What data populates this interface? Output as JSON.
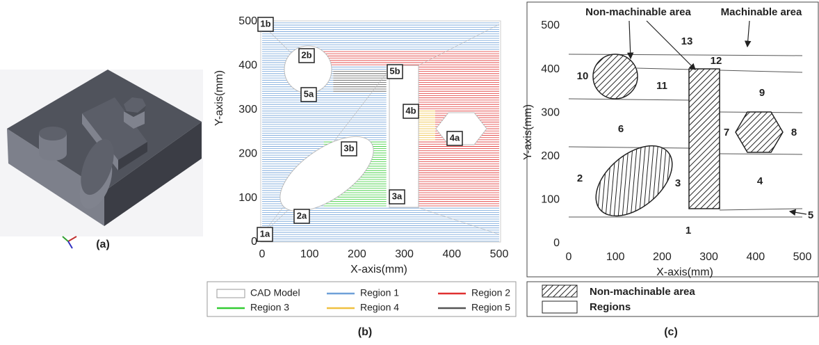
{
  "panel_a": {
    "label": "(a)"
  },
  "panel_b": {
    "label": "(b)",
    "xlabel": "X-axis(mm)",
    "ylabel": "Y-axis(mm)",
    "xlim": [
      0,
      500
    ],
    "ylim": [
      0,
      500
    ],
    "xticks": [
      0,
      100,
      200,
      300,
      400,
      500
    ],
    "yticks": [
      0,
      100,
      200,
      300,
      400,
      500
    ],
    "annotations": [
      "1b",
      "2b",
      "5b",
      "5a",
      "4b",
      "3b",
      "4a",
      "3a",
      "2a",
      "1a"
    ],
    "legend": [
      {
        "name": "CAD Model",
        "color": "#ffffff"
      },
      {
        "name": "Region 1",
        "color": "#6fa0d8"
      },
      {
        "name": "Region 2",
        "color": "#e03030"
      },
      {
        "name": "Region 3",
        "color": "#33cc33"
      },
      {
        "name": "Region 4",
        "color": "#f0c040"
      },
      {
        "name": "Region 5",
        "color": "#555555"
      }
    ]
  },
  "panel_c": {
    "label": "(c)",
    "xlabel": "X-axis(mm)",
    "ylabel": "Y-axis(mm)",
    "xlim": [
      0,
      500
    ],
    "ylim": [
      0,
      500
    ],
    "xticks": [
      0,
      100,
      200,
      300,
      400,
      500
    ],
    "yticks": [
      0,
      100,
      200,
      300,
      400,
      500
    ],
    "annotations": [
      "Non-machinable area",
      "Machinable area"
    ],
    "regions": [
      "13",
      "12",
      "10",
      "11",
      "9",
      "6",
      "7",
      "8",
      "2",
      "3",
      "4",
      "1",
      "5"
    ],
    "legend": [
      "Non-machinable area",
      "Regions"
    ]
  }
}
